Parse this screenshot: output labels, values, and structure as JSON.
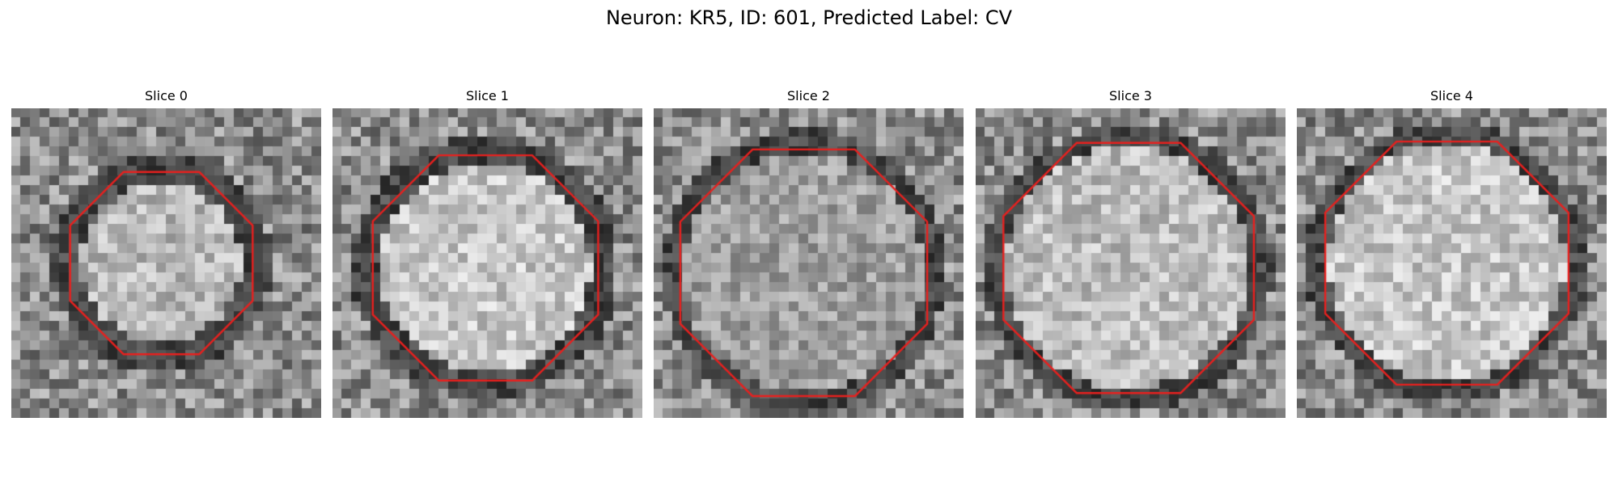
{
  "figure": {
    "title": "Neuron: KR5, ID: 601, Predicted Label: CV"
  },
  "panels": [
    {
      "title": "Slice 0"
    },
    {
      "title": "Slice 1"
    },
    {
      "title": "Slice 2"
    },
    {
      "title": "Slice 3"
    },
    {
      "title": "Slice 4"
    }
  ],
  "style": {
    "contour_color": "#e8201e",
    "colormap": "grayscale"
  }
}
